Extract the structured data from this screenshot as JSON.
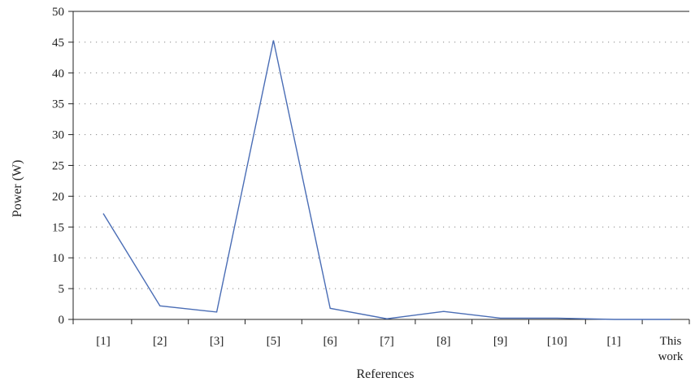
{
  "chart_data": {
    "type": "line",
    "title": "",
    "xlabel": "References",
    "ylabel": "Power (W)",
    "categories": [
      "[1]",
      "[2]",
      "[3]",
      "[5]",
      "[6]",
      "[7]",
      "[8]",
      "[9]",
      "[10]",
      "[1]",
      "This work"
    ],
    "series": [
      {
        "values": [
          17.2,
          2.2,
          1.2,
          45.3,
          1.8,
          0.1,
          1.3,
          0.2,
          0.2,
          0.0,
          0.0
        ]
      }
    ],
    "ylim": [
      0,
      50
    ],
    "yticks": [
      0,
      5,
      10,
      15,
      20,
      25,
      30,
      35,
      40,
      45,
      50
    ],
    "grid": "horizontal dotted",
    "colors": {
      "line": "#4a6db5",
      "axis": "#222222",
      "grid": "#888888"
    }
  }
}
